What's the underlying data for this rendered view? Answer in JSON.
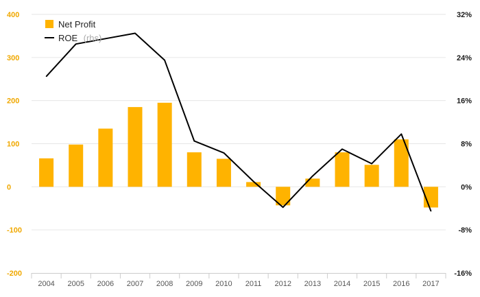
{
  "chart_data": {
    "type": "bar+line",
    "categories": [
      "2004",
      "2005",
      "2006",
      "2007",
      "2008",
      "2009",
      "2010",
      "2011",
      "2012",
      "2013",
      "2014",
      "2015",
      "2016",
      "2017"
    ],
    "series": [
      {
        "name": "Net Profit",
        "type": "bar",
        "axis": "left",
        "color": "#ffb300",
        "values": [
          66,
          98,
          135,
          185,
          195,
          80,
          65,
          11,
          -43,
          19,
          80,
          51,
          110,
          -48
        ]
      },
      {
        "name": "ROE",
        "type": "line",
        "axis": "right",
        "color": "#000000",
        "values": [
          20.5,
          26.5,
          27.5,
          28.5,
          23.5,
          8.5,
          6.3,
          1.0,
          -3.8,
          2.0,
          7.0,
          4.3,
          9.8,
          -4.5
        ]
      }
    ],
    "left_axis": {
      "ylim": [
        -200,
        400
      ],
      "ticks": [
        -200,
        -100,
        0,
        100,
        200,
        300,
        400
      ],
      "tick_labels": [
        "-200",
        "-100",
        "0",
        "100",
        "200",
        "300",
        "400"
      ],
      "color": "#f0a800"
    },
    "right_axis": {
      "ylim": [
        -16,
        32
      ],
      "ticks": [
        -16,
        -8,
        0,
        8,
        16,
        24,
        32
      ],
      "tick_labels": [
        "-16%",
        "-8%",
        "0%",
        "8%",
        "16%",
        "24%",
        "32%"
      ],
      "color": "#1a1a1a"
    },
    "legend": {
      "placement": "top-left",
      "entries": [
        {
          "label": "Net Profit",
          "sub": ""
        },
        {
          "label": "ROE",
          "sub": "(rhs)"
        }
      ]
    },
    "title": "",
    "grid": true
  }
}
